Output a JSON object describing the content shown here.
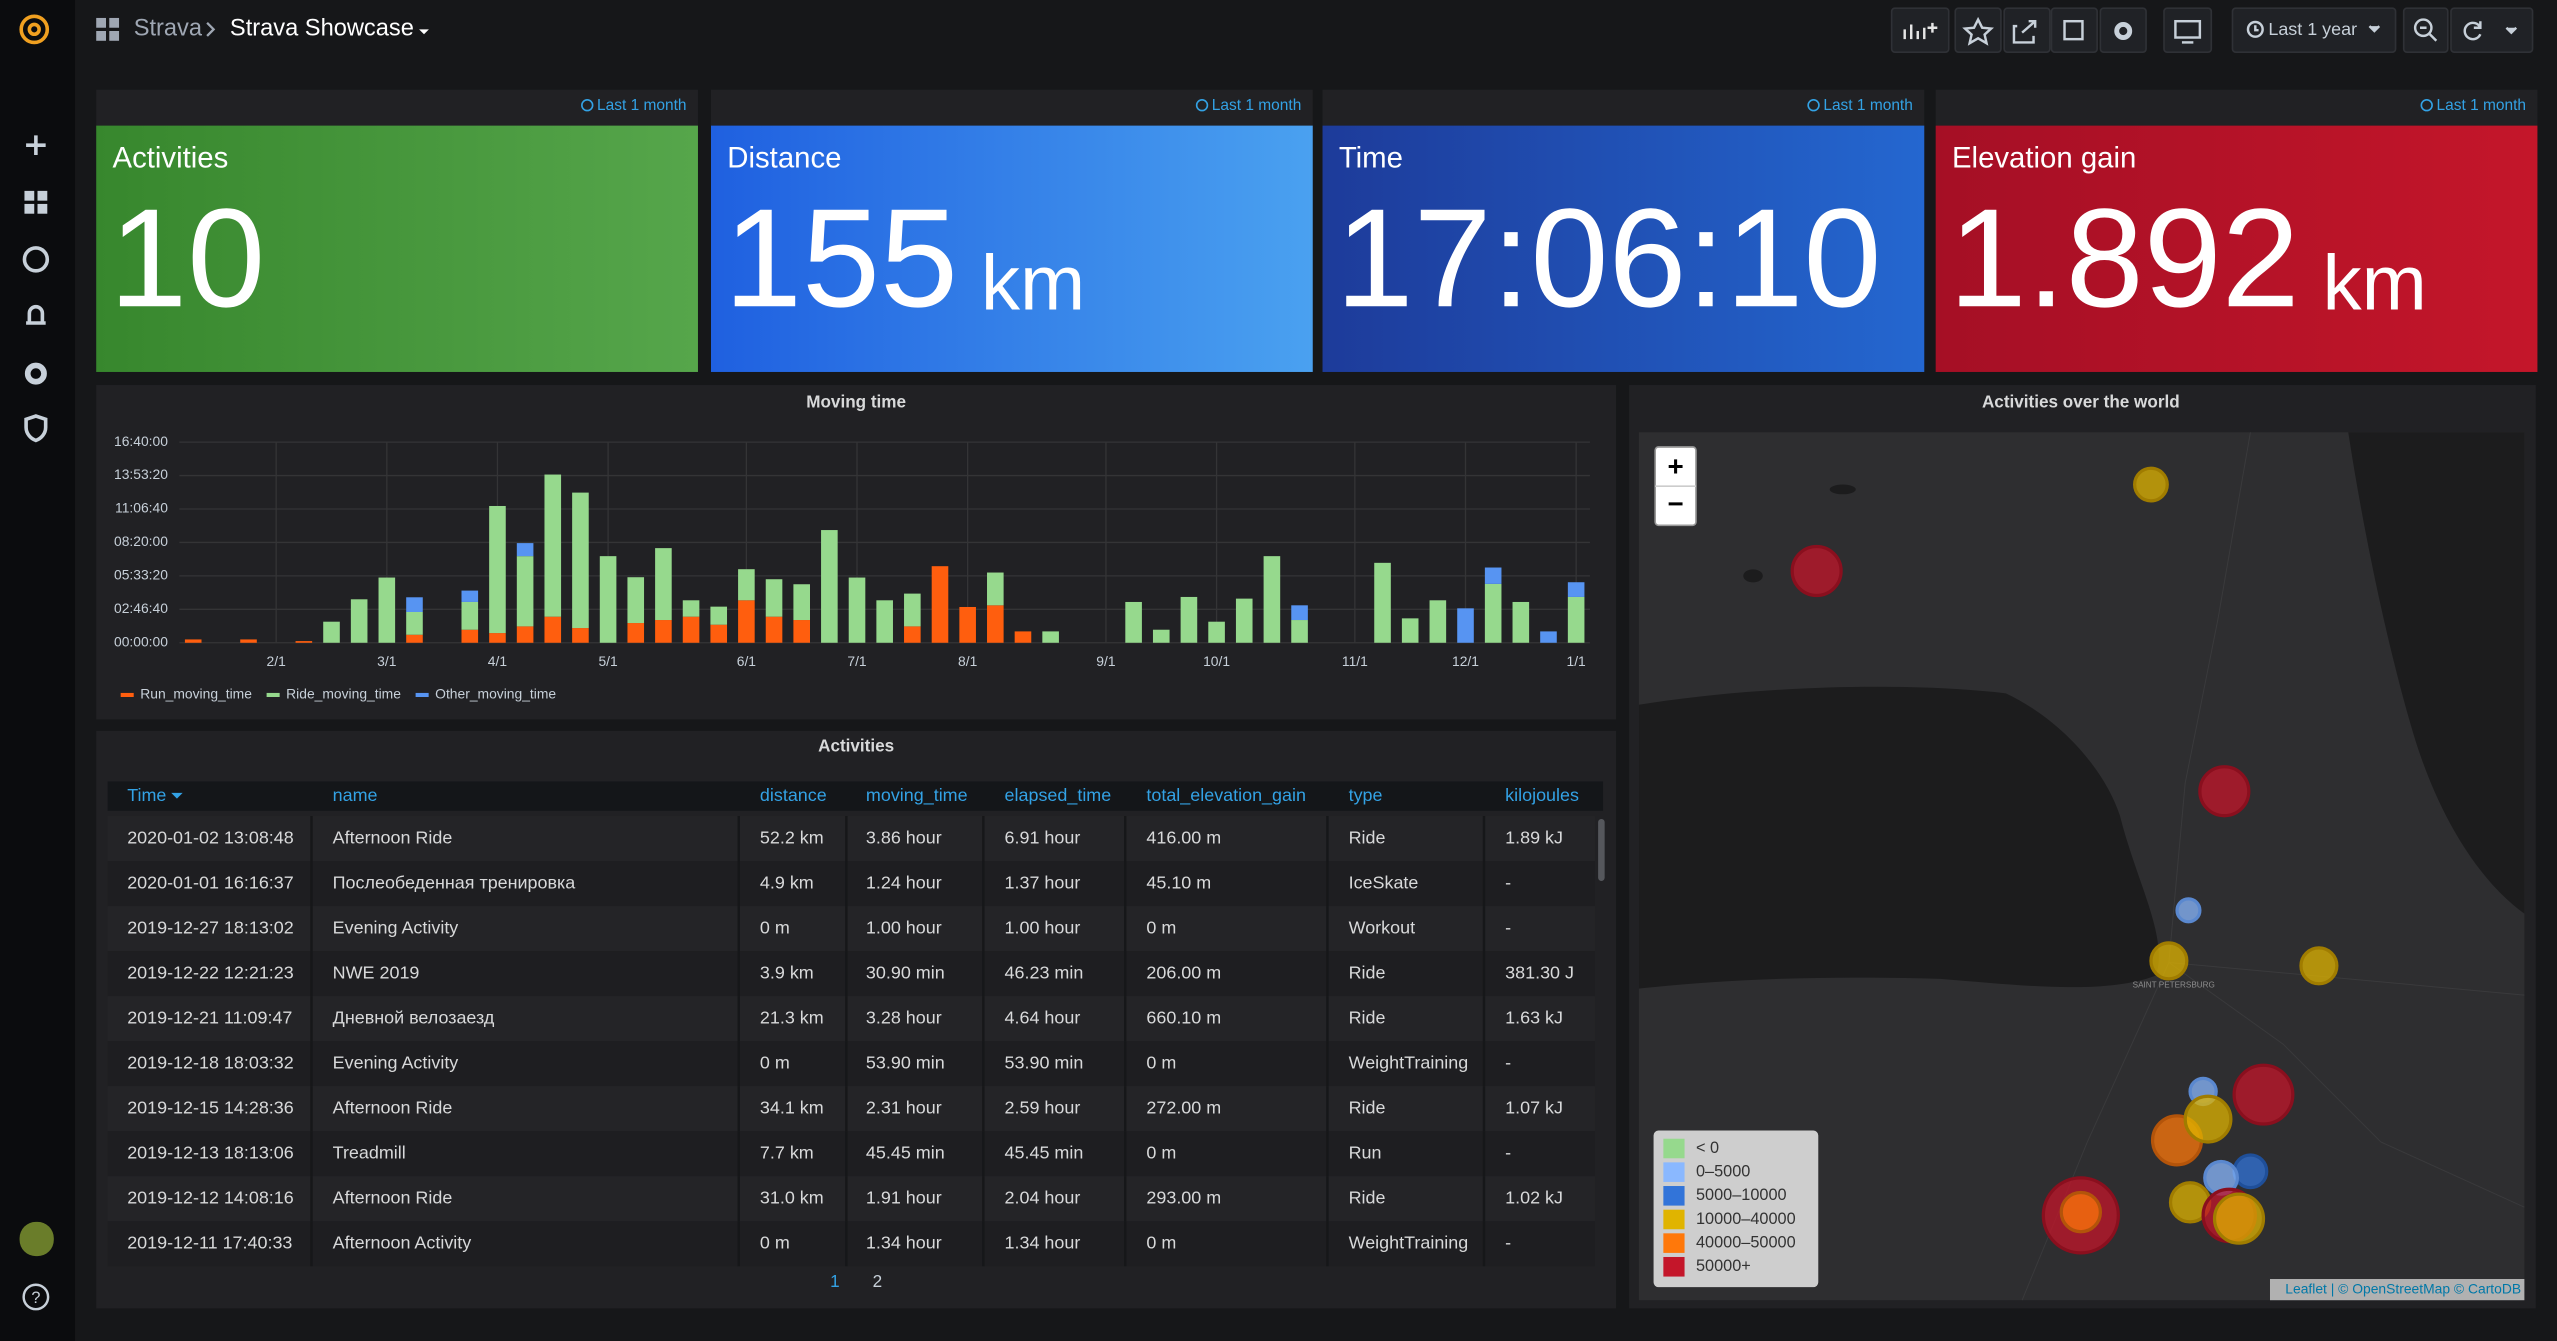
{
  "header": {
    "breadcrumb": "Strava",
    "title": "Strava Showcase",
    "time_range": "Last 1 year"
  },
  "stat_panels": [
    {
      "time_badge": "Last 1 month",
      "title": "Activities",
      "value": 10,
      "colors": [
        "#37872d",
        "#56a64b"
      ]
    },
    {
      "time_badge": "Last 1 month",
      "title": "Distance",
      "value": 155,
      "unit": "km",
      "colors": [
        "#1f60e0",
        "#4aa1f0"
      ]
    },
    {
      "time_badge": "Last 1 month",
      "title": "Time",
      "value": "17:06:10",
      "colors": [
        "#1d3b9a",
        "#2467d0"
      ]
    },
    {
      "time_badge": "Last 1 month",
      "title": "Elevation gain",
      "value": 1.892,
      "unit": "km",
      "colors": [
        "#a50f25",
        "#c4162a"
      ]
    }
  ],
  "chart_data": {
    "type": "bar",
    "stacked": true,
    "title": "Moving time",
    "grid": true,
    "legend": "bottom-left",
    "categories": [
      null,
      null,
      null,
      "2/1",
      null,
      null,
      null,
      "3/1",
      null,
      null,
      null,
      "4/1",
      null,
      null,
      null,
      "5/1",
      null,
      null,
      null,
      null,
      "6/1",
      null,
      null,
      null,
      "7/1",
      null,
      null,
      null,
      "8/1",
      null,
      null,
      null,
      null,
      "9/1",
      null,
      null,
      null,
      "10/1",
      null,
      null,
      null,
      null,
      "11/1",
      null,
      null,
      null,
      "12/1",
      null,
      null,
      null,
      "1/1"
    ],
    "series": [
      {
        "name": "Run_moving_time",
        "color": "#ff5e0e",
        "values": [
          1000,
          0,
          1000,
          0,
          500,
          0,
          0,
          0,
          2400,
          0,
          3900,
          2900,
          4900,
          7800,
          4400,
          0,
          5900,
          6800,
          7800,
          5400,
          12700,
          7800,
          6800,
          0,
          0,
          0,
          4900,
          22900,
          10700,
          11200,
          3400,
          0,
          0,
          0,
          0,
          0,
          0,
          0,
          0,
          0,
          0,
          0,
          0,
          0,
          0,
          0,
          0,
          0,
          0,
          0,
          0
        ]
      },
      {
        "name": "Ride_moving_time",
        "color": "#96d98d",
        "values": [
          0,
          0,
          0,
          0,
          0,
          6300,
          13000,
          19500,
          6800,
          0,
          8300,
          38000,
          21000,
          42500,
          40500,
          25900,
          13700,
          21500,
          4900,
          5400,
          9300,
          11200,
          10700,
          33700,
          19500,
          12700,
          9800,
          0,
          0,
          9800,
          0,
          3400,
          0,
          0,
          12200,
          3900,
          13700,
          6300,
          13200,
          25900,
          6800,
          0,
          0,
          23900,
          7300,
          12700,
          0,
          17600,
          12200,
          0,
          13700
        ]
      },
      {
        "name": "Other_moving_time",
        "color": "#5794f2",
        "values": [
          0,
          0,
          0,
          0,
          0,
          0,
          0,
          0,
          4400,
          0,
          3400,
          0,
          3900,
          0,
          0,
          0,
          0,
          0,
          0,
          0,
          0,
          0,
          0,
          0,
          0,
          0,
          0,
          0,
          0,
          0,
          0,
          0,
          0,
          0,
          0,
          0,
          0,
          0,
          0,
          0,
          4400,
          0,
          0,
          0,
          0,
          0,
          10300,
          4900,
          0,
          3400,
          4400
        ]
      }
    ],
    "ylim": [
      0,
      60000
    ],
    "yticks": [
      {
        "value": 0,
        "label": "00:00:00"
      },
      {
        "value": 10000,
        "label": "02:46:40"
      },
      {
        "value": 20000,
        "label": "05:33:20"
      },
      {
        "value": 30000,
        "label": "08:20:00"
      },
      {
        "value": 40000,
        "label": "11:06:40"
      },
      {
        "value": 50000,
        "label": "13:53:20"
      },
      {
        "value": 60000,
        "label": "16:40:00"
      }
    ]
  },
  "table": {
    "title": "Activities",
    "columns": [
      "Time",
      "name",
      "distance",
      "moving_time",
      "elapsed_time",
      "total_elevation_gain",
      "type",
      "kilojoules"
    ],
    "rows": [
      [
        "2020-01-02 13:08:48",
        "Afternoon Ride",
        "52.2 km",
        "3.86 hour",
        "6.91 hour",
        "416.00 m",
        "Ride",
        "1.89 kJ"
      ],
      [
        "2020-01-01 16:16:37",
        "Послеобеденная тренировка",
        "4.9 km",
        "1.24 hour",
        "1.37 hour",
        "45.10 m",
        "IceSkate",
        "-"
      ],
      [
        "2019-12-27 18:13:02",
        "Evening Activity",
        "0 m",
        "1.00 hour",
        "1.00 hour",
        "0 m",
        "Workout",
        "-"
      ],
      [
        "2019-12-22 12:21:23",
        "NWE 2019",
        "3.9 km",
        "30.90 min",
        "46.23 min",
        "206.00 m",
        "Ride",
        "381.30 J"
      ],
      [
        "2019-12-21 11:09:47",
        "Дневной велозаезд",
        "21.3 km",
        "3.28 hour",
        "4.64 hour",
        "660.10 m",
        "Ride",
        "1.63 kJ"
      ],
      [
        "2019-12-18 18:03:32",
        "Evening Activity",
        "0 m",
        "53.90 min",
        "53.90 min",
        "0 m",
        "WeightTraining",
        "-"
      ],
      [
        "2019-12-15 14:28:36",
        "Afternoon Ride",
        "34.1 km",
        "2.31 hour",
        "2.59 hour",
        "272.00 m",
        "Ride",
        "1.07 kJ"
      ],
      [
        "2019-12-13 18:13:06",
        "Treadmill",
        "7.7 km",
        "45.45 min",
        "45.45 min",
        "0 m",
        "Run",
        "-"
      ],
      [
        "2019-12-12 14:08:16",
        "Afternoon Ride",
        "31.0 km",
        "1.91 hour",
        "2.04 hour",
        "293.00 m",
        "Ride",
        "1.02 kJ"
      ],
      [
        "2019-12-11 17:40:33",
        "Afternoon Activity",
        "0 m",
        "1.34 hour",
        "1.34 hour",
        "0 m",
        "WeightTraining",
        "-"
      ]
    ],
    "pages": [
      "1",
      "2"
    ]
  },
  "map": {
    "title": "Activities over the world",
    "zoom_in": "+",
    "zoom_out": "−",
    "place_label": "SAINT PETERSBURG",
    "legend": [
      {
        "label": "< 0",
        "color": "#96d98d"
      },
      {
        "label": "0–5000",
        "color": "#8ab8ff"
      },
      {
        "label": "5000–10000",
        "color": "#3274d9"
      },
      {
        "label": "10000–40000",
        "color": "#e0b400"
      },
      {
        "label": "40000–50000",
        "color": "#ff780a"
      },
      {
        "label": "50000+",
        "color": "#c4162a"
      }
    ],
    "attribution": "Leaflet | © OpenStreetMap © CartoDB"
  }
}
